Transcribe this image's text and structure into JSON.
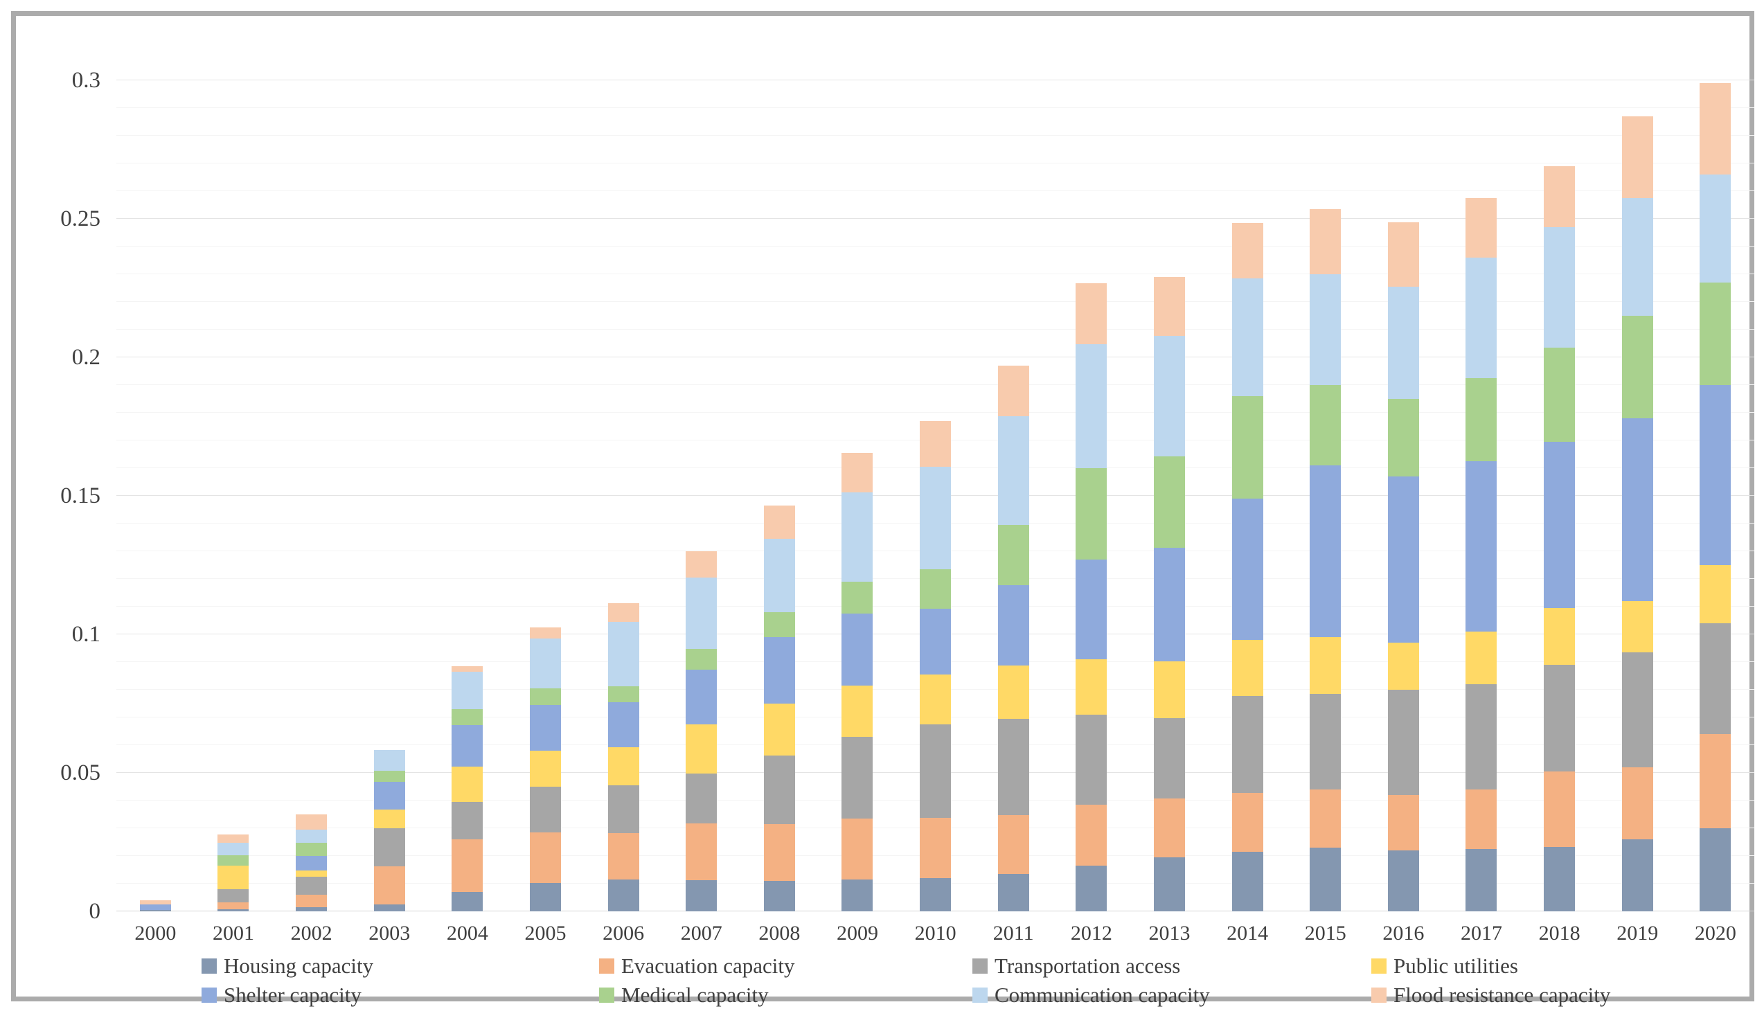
{
  "figure": {
    "kind": "stacked-column-chart",
    "frame_border_color": "#ababab",
    "background": "#ffffff",
    "text_color": "#3f3f3f"
  },
  "chart_data": {
    "type": "bar",
    "stacked": true,
    "title": "",
    "xlabel": "",
    "ylabel": "",
    "ylim": [
      0,
      0.3
    ],
    "y_major_step": 0.05,
    "y_minor_step": 0.01,
    "grid": true,
    "legend_position": "bottom",
    "y_ticks": [
      {
        "label": "0",
        "value": 0
      },
      {
        "label": "0.05",
        "value": 0.05
      },
      {
        "label": "0.1",
        "value": 0.1
      },
      {
        "label": "0.15",
        "value": 0.15
      },
      {
        "label": "0.2",
        "value": 0.2
      },
      {
        "label": "0.25",
        "value": 0.25
      },
      {
        "label": "0.3",
        "value": 0.3
      }
    ],
    "categories": [
      "2000",
      "2001",
      "2002",
      "2003",
      "2004",
      "2005",
      "2006",
      "2007",
      "2008",
      "2009",
      "2010",
      "2011",
      "2012",
      "2013",
      "2014",
      "2015",
      "2016",
      "2017",
      "2018",
      "2019",
      "2020"
    ],
    "series": [
      {
        "name": "Housing capacity",
        "color": "#8497b0",
        "values": [
          0.0005,
          0.0008,
          0.0015,
          0.0025,
          0.007,
          0.0103,
          0.0115,
          0.0113,
          0.0109,
          0.0115,
          0.0119,
          0.0135,
          0.0165,
          0.0195,
          0.0215,
          0.023,
          0.022,
          0.0225,
          0.0232,
          0.026,
          0.03
        ]
      },
      {
        "name": "Evacuation capacity",
        "color": "#f4b183",
        "values": [
          0,
          0.0025,
          0.0046,
          0.0137,
          0.019,
          0.0182,
          0.0167,
          0.0205,
          0.0207,
          0.022,
          0.0219,
          0.0213,
          0.0219,
          0.0212,
          0.0212,
          0.021,
          0.02,
          0.0215,
          0.0272,
          0.026,
          0.034
        ]
      },
      {
        "name": "Transportation access",
        "color": "#a6a6a6",
        "values": [
          0,
          0.0047,
          0.0064,
          0.0138,
          0.0135,
          0.0165,
          0.0173,
          0.0179,
          0.0246,
          0.0296,
          0.0338,
          0.0346,
          0.0327,
          0.029,
          0.035,
          0.0345,
          0.038,
          0.038,
          0.0387,
          0.0415,
          0.04
        ]
      },
      {
        "name": "Public utilities",
        "color": "#ffd966",
        "values": [
          0,
          0.0085,
          0.0022,
          0.0068,
          0.0128,
          0.0131,
          0.0138,
          0.0178,
          0.0188,
          0.0184,
          0.0178,
          0.0194,
          0.0199,
          0.0206,
          0.0202,
          0.0206,
          0.017,
          0.019,
          0.0203,
          0.0185,
          0.021
        ]
      },
      {
        "name": "Shelter capacity",
        "color": "#8faadc",
        "values": [
          0.002,
          0,
          0.0053,
          0.01,
          0.015,
          0.0165,
          0.0161,
          0.0198,
          0.0241,
          0.026,
          0.0238,
          0.029,
          0.0359,
          0.041,
          0.051,
          0.0618,
          0.06,
          0.0615,
          0.0601,
          0.066,
          0.065
        ]
      },
      {
        "name": "Medical capacity",
        "color": "#a9d18e",
        "values": [
          0,
          0.0037,
          0.0047,
          0.004,
          0.0058,
          0.006,
          0.0058,
          0.0075,
          0.009,
          0.0115,
          0.0144,
          0.0216,
          0.0332,
          0.033,
          0.037,
          0.029,
          0.028,
          0.03,
          0.0341,
          0.037,
          0.037
        ]
      },
      {
        "name": "Communication capacity",
        "color": "#bdd7ee",
        "values": [
          0,
          0.0046,
          0.0049,
          0.0075,
          0.0134,
          0.0178,
          0.0234,
          0.0256,
          0.0263,
          0.0322,
          0.0369,
          0.0394,
          0.0446,
          0.0435,
          0.0427,
          0.0402,
          0.0406,
          0.0435,
          0.0434,
          0.0425,
          0.039
        ]
      },
      {
        "name": "Flood resistance capacity",
        "color": "#f8cbad",
        "values": [
          0.0015,
          0.0029,
          0.0054,
          0,
          0.002,
          0.0041,
          0.0066,
          0.0096,
          0.0121,
          0.0143,
          0.0165,
          0.0182,
          0.022,
          0.0212,
          0.0199,
          0.0234,
          0.0231,
          0.0215,
          0.0219,
          0.0295,
          0.033
        ]
      }
    ]
  }
}
